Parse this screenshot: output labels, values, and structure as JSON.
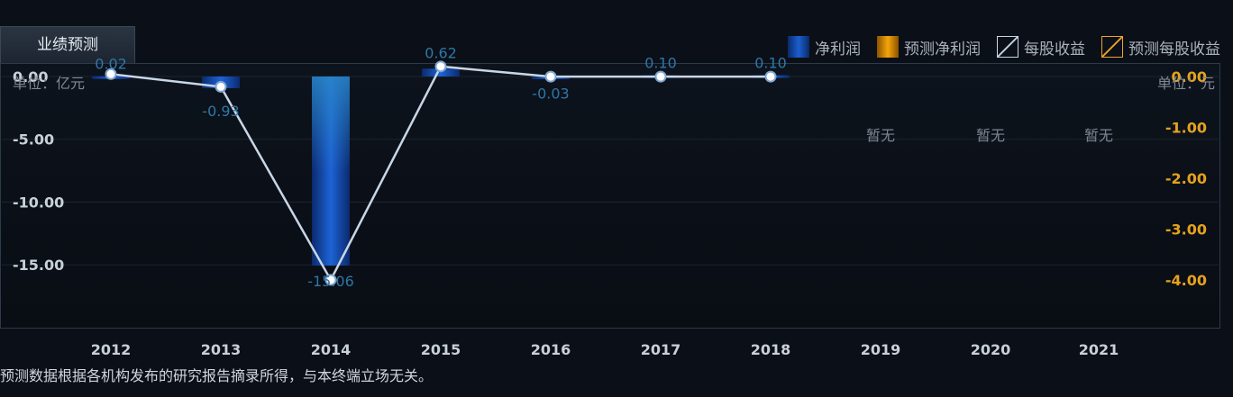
{
  "tab": {
    "label": "业绩预测"
  },
  "legend": [
    {
      "label": "净利润",
      "swatch": "bar",
      "color": "#1c5fd0"
    },
    {
      "label": "预测净利润",
      "swatch": "bar",
      "color": "#f5a60a"
    },
    {
      "label": "每股收益",
      "swatch": "line",
      "color": "#c9d6e6"
    },
    {
      "label": "预测每股收益",
      "swatch": "line",
      "color": "#f0a32a"
    }
  ],
  "units": {
    "left": "单位：亿元",
    "right": "单位：元"
  },
  "footnote": "预测数据根据各机构发布的研究报告摘录所得，与本终端立场无关。",
  "chart_data": {
    "type": "bar",
    "categories": [
      "2012",
      "2013",
      "2014",
      "2015",
      "2016",
      "2017",
      "2018",
      "2019",
      "2020",
      "2021"
    ],
    "series": [
      {
        "name": "净利润",
        "type": "bar",
        "axis": "left",
        "values": [
          0.02,
          -0.93,
          -15.06,
          0.62,
          -0.03,
          0.1,
          0.1,
          null,
          null,
          null
        ],
        "labels": [
          "0.02",
          "-0.93",
          "-15.06",
          "0.62",
          "-0.03",
          "0.10",
          "0.10",
          "暂无",
          "暂无",
          "暂无"
        ]
      },
      {
        "name": "每股收益",
        "type": "line",
        "axis": "right",
        "values": [
          0.05,
          -0.2,
          -4.0,
          0.2,
          0.0,
          0.0,
          0.0,
          null,
          null,
          null
        ]
      }
    ],
    "yaxis_left": {
      "ticks": [
        "0.00",
        "-5.00",
        "-10.00",
        "-15.00"
      ],
      "tick_values": [
        0,
        -5,
        -10,
        -15
      ],
      "ylim": [
        -20,
        1
      ]
    },
    "yaxis_right": {
      "ticks": [
        "0.00",
        "-1.00",
        "-2.00",
        "-3.00",
        "-4.00"
      ],
      "tick_values": [
        0,
        -1,
        -2,
        -3,
        -4
      ],
      "ylim": [
        -4.94,
        0.25
      ]
    },
    "grid": true,
    "legend_position": "top-right"
  },
  "colors": {
    "bar": "#1c5fd0",
    "line": "#c9d6e6",
    "label": "#2e77a8",
    "left_tick": "#c8d0d8",
    "right_tick": "#e6a21e",
    "x_tick": "#c8d0d8",
    "na_label": "#7b8591"
  }
}
